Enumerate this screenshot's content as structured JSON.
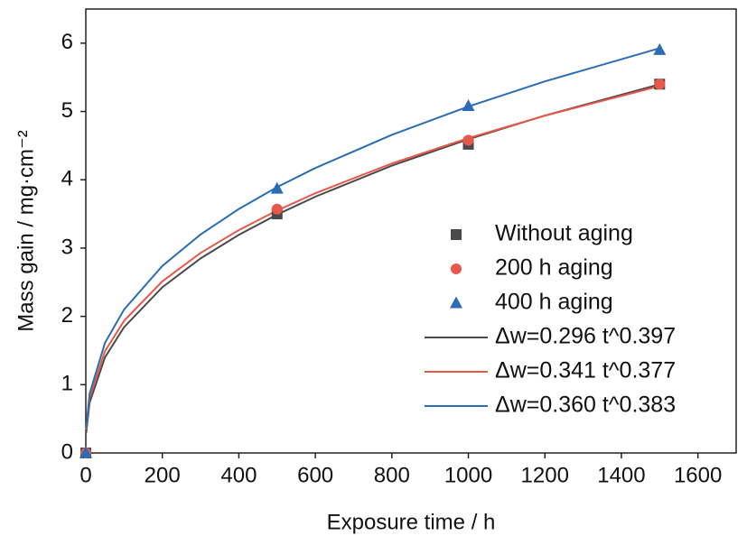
{
  "chart_data": {
    "type": "scatter",
    "xlabel": "Exposure time / h",
    "ylabel": "Mass gain / mg·cm⁻²",
    "xlim": [
      0,
      1700
    ],
    "xticks": [
      0,
      200,
      400,
      600,
      800,
      1000,
      1200,
      1400,
      1600
    ],
    "ylim": [
      0,
      6.5
    ],
    "yticks": [
      0,
      1,
      2,
      3,
      4,
      5,
      6
    ],
    "grid": false,
    "legend": "right",
    "series": [
      {
        "name": "Without aging",
        "color": "#4a4a4a",
        "style": "marker",
        "marker": "square",
        "x": [
          0,
          500,
          1000,
          1500
        ],
        "values": [
          0,
          3.5,
          4.52,
          5.4
        ]
      },
      {
        "name": "200 h aging",
        "color": "#e8584a",
        "style": "marker",
        "marker": "circle",
        "x": [
          0,
          500,
          1000,
          1500
        ],
        "values": [
          0,
          3.57,
          4.58,
          5.4
        ]
      },
      {
        "name": "400 h aging",
        "color": "#2a6db5",
        "style": "marker",
        "marker": "triangle",
        "x": [
          0,
          500,
          1000,
          1500
        ],
        "values": [
          0,
          3.87,
          5.08,
          5.9
        ]
      },
      {
        "name": "Δw=0.296 t^0.397",
        "color": "#4a4a4a",
        "style": "line",
        "x": [
          1,
          10,
          50,
          100,
          200,
          300,
          400,
          500,
          600,
          800,
          1000,
          1200,
          1500
        ],
        "values": [
          0.296,
          0.738,
          1.399,
          1.842,
          2.426,
          2.849,
          3.194,
          3.49,
          3.752,
          4.207,
          4.594,
          4.94,
          5.397
        ]
      },
      {
        "name": "Δw=0.341 t^0.377",
        "color": "#e8584a",
        "style": "line",
        "x": [
          1,
          10,
          50,
          100,
          200,
          300,
          400,
          500,
          600,
          800,
          1000,
          1200,
          1500
        ],
        "values": [
          0.341,
          0.812,
          1.49,
          1.935,
          2.513,
          2.929,
          3.263,
          3.55,
          3.803,
          4.239,
          4.61,
          4.938,
          5.372
        ]
      },
      {
        "name": "Δw=0.360 t^0.383",
        "color": "#2a6db5",
        "style": "line",
        "x": [
          1,
          10,
          50,
          100,
          200,
          300,
          400,
          500,
          600,
          800,
          1000,
          1200,
          1500
        ],
        "values": [
          0.36,
          0.87,
          1.611,
          2.1,
          2.739,
          3.199,
          3.572,
          3.892,
          4.172,
          4.658,
          5.073,
          5.441,
          5.926
        ]
      }
    ]
  }
}
